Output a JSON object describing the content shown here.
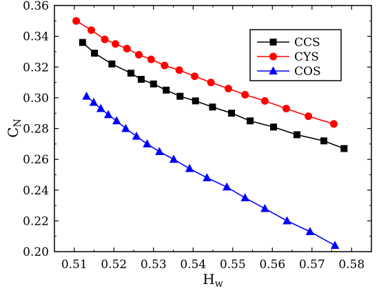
{
  "chart_data": {
    "type": "line",
    "title": "",
    "xlabel_main": "H",
    "xlabel_sub": "w",
    "ylabel_main": "C",
    "ylabel_sub": "N",
    "xlim": [
      0.505,
      0.585
    ],
    "ylim": [
      0.2,
      0.36
    ],
    "xticks": [
      "0.51",
      "0.52",
      "0.53",
      "0.54",
      "0.55",
      "0.56",
      "0.57",
      "0.58"
    ],
    "yticks": [
      "0.20",
      "0.22",
      "0.24",
      "0.26",
      "0.28",
      "0.30",
      "0.32",
      "0.34",
      "0.36"
    ],
    "grid": false,
    "legend_position": "top-right",
    "series": [
      {
        "name": "CCS",
        "color": "#000000",
        "marker": "square",
        "x": [
          0.5121,
          0.5151,
          0.5195,
          0.5243,
          0.5269,
          0.53,
          0.5332,
          0.5367,
          0.5406,
          0.5449,
          0.5497,
          0.5544,
          0.5603,
          0.5662,
          0.573,
          0.5781
        ],
        "y": [
          0.336,
          0.329,
          0.322,
          0.316,
          0.312,
          0.309,
          0.305,
          0.301,
          0.298,
          0.294,
          0.29,
          0.285,
          0.281,
          0.276,
          0.272,
          0.267
        ]
      },
      {
        "name": "CYS",
        "color": "#ff0000",
        "marker": "circle",
        "x": [
          0.5105,
          0.5143,
          0.5177,
          0.5204,
          0.5233,
          0.5263,
          0.5294,
          0.5328,
          0.5365,
          0.5404,
          0.5445,
          0.5489,
          0.5531,
          0.5581,
          0.5635,
          0.5691,
          0.5755
        ],
        "y": [
          0.35,
          0.344,
          0.338,
          0.335,
          0.332,
          0.328,
          0.325,
          0.321,
          0.318,
          0.314,
          0.31,
          0.306,
          0.302,
          0.298,
          0.293,
          0.288,
          0.283
        ]
      },
      {
        "name": "COS",
        "color": "#0000ff",
        "marker": "triangle",
        "x": [
          0.5131,
          0.5149,
          0.5167,
          0.5186,
          0.5207,
          0.523,
          0.5257,
          0.5284,
          0.5315,
          0.5351,
          0.5391,
          0.5435,
          0.5485,
          0.5531,
          0.5581,
          0.5637,
          0.5695,
          0.5758
        ],
        "y": [
          0.301,
          0.297,
          0.293,
          0.289,
          0.285,
          0.28,
          0.275,
          0.27,
          0.265,
          0.26,
          0.254,
          0.248,
          0.242,
          0.235,
          0.228,
          0.22,
          0.213,
          0.204
        ]
      }
    ]
  }
}
